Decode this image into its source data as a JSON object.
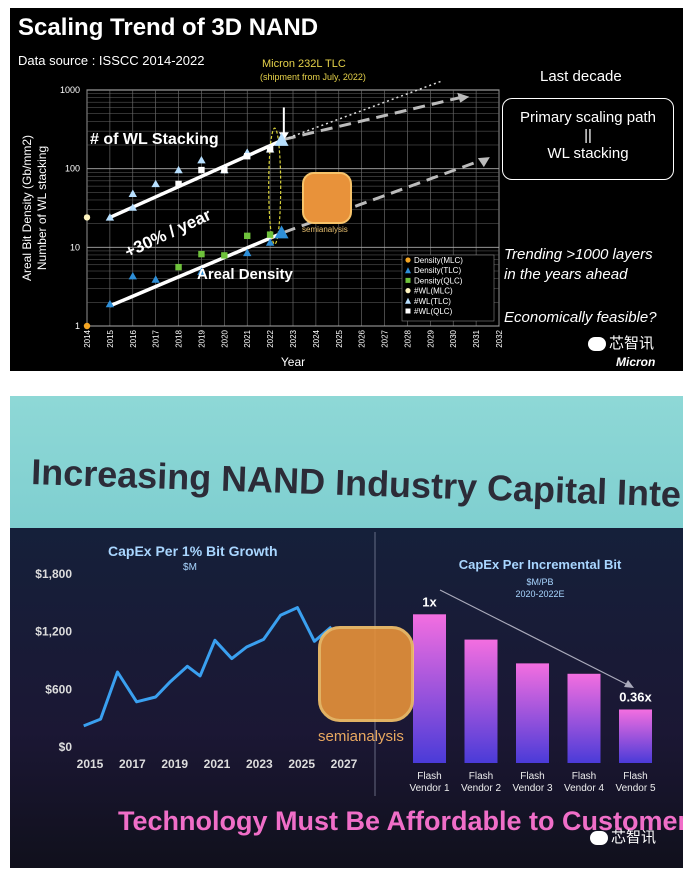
{
  "slide1": {
    "title": "Scaling Trend of 3D NAND",
    "data_source": "Data source : ISSCC 2014-2022",
    "callout_title": "Micron 232L TLC",
    "callout_sub": "(shipment from July, 2022)",
    "right_heading": "Last decade",
    "box_line1": "Primary scaling path",
    "box_line2": "||",
    "box_line3": "WL stacking",
    "trend_line1": "Trending >1000 layers",
    "trend_line2": "in the years ahead",
    "feasible": "Economically feasible?",
    "wechat_brand": "芯智讯",
    "micron_logo": "Micron",
    "watermark_text": "semianalysis"
  },
  "slide2": {
    "title": "Increasing NAND Industry Capital Intensity",
    "tagline": "Technology Must Be Affordable to Customers",
    "wechat_brand": "芯智讯",
    "watermark_text": "semianalysis"
  },
  "chart_data": [
    {
      "type": "scatter",
      "xlabel": "Year",
      "ylabel": "Areal Bit Density (Gb/mm2)",
      "ylabel2": "Number of WL stacking",
      "x_ticks": [
        "2014",
        "2015",
        "2016",
        "2017",
        "2018",
        "2019",
        "2020",
        "2021",
        "2022",
        "2023",
        "2024",
        "2025",
        "2026",
        "2027",
        "2028",
        "2029",
        "2030",
        "2031",
        "2032"
      ],
      "y_ticks": [
        "1",
        "10",
        "100",
        "1000"
      ],
      "xlim": [
        2014,
        2032
      ],
      "ylim": [
        1,
        1000
      ],
      "yscale": "log",
      "grid": true,
      "legend_position": "bottom-right",
      "annotations": [
        "# of WL Stacking",
        "+30% / year",
        "Areal Density"
      ],
      "series": [
        {
          "name": "Density(MLC)",
          "marker": "circle",
          "color": "#f5a623",
          "points": [
            [
              2014,
              1
            ]
          ]
        },
        {
          "name": "Density(TLC)",
          "marker": "triangle",
          "color": "#2e8fd8",
          "points": [
            [
              2015,
              1.9
            ],
            [
              2016,
              4.3
            ],
            [
              2017,
              3.9
            ],
            [
              2019,
              4.9
            ],
            [
              2021,
              8.5
            ],
            [
              2022,
              11.5
            ],
            [
              2022.5,
              15.5
            ]
          ]
        },
        {
          "name": "Density(QLC)",
          "marker": "square",
          "color": "#6fc23c",
          "points": [
            [
              2018,
              5.6
            ],
            [
              2019,
              8.2
            ],
            [
              2020,
              7.9
            ],
            [
              2021,
              14
            ],
            [
              2022,
              14.5
            ]
          ]
        },
        {
          "name": "#WL(MLC)",
          "marker": "circle",
          "color": "#fff5c0",
          "points": [
            [
              2014,
              24
            ]
          ]
        },
        {
          "name": "#WL(TLC)",
          "marker": "triangle",
          "color": "#b8e0ff",
          "points": [
            [
              2015,
              24
            ],
            [
              2016,
              48
            ],
            [
              2016,
              32
            ],
            [
              2017,
              64
            ],
            [
              2018,
              96
            ],
            [
              2019,
              128
            ],
            [
              2020,
              96
            ],
            [
              2021,
              160
            ],
            [
              2022,
              176
            ],
            [
              2022.5,
              232
            ]
          ]
        },
        {
          "name": "#WL(QLC)",
          "marker": "square",
          "color": "#ffffff",
          "points": [
            [
              2018,
              64
            ],
            [
              2019,
              96
            ],
            [
              2020,
              96
            ],
            [
              2021,
              144
            ],
            [
              2022,
              176
            ]
          ]
        }
      ]
    },
    {
      "type": "line",
      "title": "CapEx Per 1% Bit Growth",
      "subtitle": "$M",
      "x_ticks": [
        "2015",
        "2017",
        "2019",
        "2021",
        "2023",
        "2025",
        "2027"
      ],
      "y_ticks": [
        "$0",
        "$600",
        "$1,200",
        "$1,800"
      ],
      "ylim": [
        0,
        1800
      ],
      "xlim": [
        2015,
        2027
      ],
      "grid": false,
      "series": [
        {
          "x": [
            2014.7,
            2015.5,
            2016.3,
            2017.2,
            2018.1,
            2018.8,
            2019.6,
            2020.2,
            2020.9,
            2021.7,
            2022.4,
            2023.2,
            2024.0,
            2024.8,
            2025.6,
            2026.4
          ],
          "values": [
            220,
            290,
            780,
            470,
            520,
            680,
            840,
            740,
            1110,
            920,
            1040,
            1120,
            1370,
            1450,
            1100,
            1250
          ]
        }
      ]
    },
    {
      "type": "bar",
      "title": "CapEx Per Incremental Bit",
      "subtitle": "$M/PB",
      "subtitle2": "2020-2022E",
      "categories": [
        "Flash Vendor 1",
        "Flash Vendor 2",
        "Flash Vendor 3",
        "Flash Vendor 4",
        "Flash Vendor 5"
      ],
      "values": [
        1.0,
        0.83,
        0.67,
        0.6,
        0.36
      ],
      "labels": [
        "1x",
        "",
        "",
        "",
        "0.36x"
      ],
      "ylim": [
        0,
        1.15
      ]
    }
  ]
}
